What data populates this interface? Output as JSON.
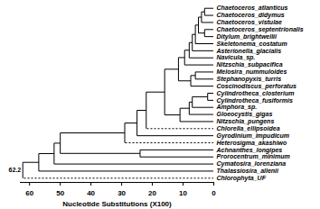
{
  "chart_data": {
    "type": "dendrogram",
    "x_label": "Nucleotide Substitutions (X100)",
    "xlim": [
      63,
      0
    ],
    "xticks": [
      60,
      50,
      40,
      30,
      20,
      10,
      0
    ],
    "tree": {
      "height": 62.2,
      "children": [
        {
          "height": 57,
          "children": [
            {
              "height": 52,
              "children": [
                {
                  "height": 50,
                  "children": [
                    {
                      "height": 29,
                      "children": [
                        {
                          "height": 25,
                          "children": [
                            {
                              "height": 22,
                              "children": [
                                {
                                  "height": 16,
                                  "children": [
                                    {
                                      "height": 11.5,
                                      "children": [
                                        {
                                          "height": 9.5,
                                          "children": [
                                            {
                                              "height": 8,
                                              "children": [
                                                {
                                                  "height": 7,
                                                  "children": [
                                                    {
                                                      "height": 6,
                                                      "children": [
                                                        {
                                                          "height": 5,
                                                          "children": [
                                                            {
                                                              "height": 4,
                                                              "children": [
                                                                {
                                                                  "height": 3,
                                                                  "children": [
                                                                    {
                                                                      "name": "Chaetoceros_atlanticus",
                                                                      "height": 0
                                                                    },
                                                                    {
                                                                      "name": "Chaetoceros_didymus",
                                                                      "height": 0
                                                                    }
                                                                  ]
                                                                },
                                                                {
                                                                  "name": "Chaetoceros_vistulae",
                                                                  "height": 0
                                                                }
                                                              ]
                                                            },
                                                            {
                                                              "height": 3,
                                                              "children": [
                                                                {
                                                                  "name": "Chaetoceros_septentrionalis",
                                                                  "height": 0
                                                                },
                                                                {
                                                                  "name": "Ditylum_brightwellii",
                                                                  "height": 0
                                                                }
                                                              ]
                                                            }
                                                          ]
                                                        },
                                                        {
                                                          "name": "Skeletonema_costatum",
                                                          "height": 0
                                                        }
                                                      ]
                                                    },
                                                    {
                                                      "name": "Asterionella_glacialis",
                                                      "height": 0
                                                    }
                                                  ]
                                                },
                                                {
                                                  "name": "Navicula_sp.",
                                                  "height": 0
                                                }
                                              ]
                                            },
                                            {
                                              "name": "Nitzschia_subpacifica",
                                              "height": 0
                                            }
                                          ]
                                        },
                                        {
                                          "height": 7.5,
                                          "children": [
                                            {
                                              "height": 6,
                                              "children": [
                                                {
                                                  "name": "Melosira_nummuloides",
                                                  "height": 0
                                                },
                                                {
                                                  "name": "Stephanopyxis_turris",
                                                  "height": 0
                                                }
                                              ]
                                            },
                                            {
                                              "name": "Coscinodiscus_perforatus",
                                              "height": 0
                                            }
                                          ]
                                        }
                                      ]
                                    },
                                    {
                                      "height": 11,
                                      "children": [
                                        {
                                          "height": 8,
                                          "children": [
                                            {
                                              "height": 7,
                                              "children": [
                                                {
                                                  "height": 2,
                                                  "children": [
                                                    {
                                                      "name": "Cylindrotheca_closterium",
                                                      "height": 0
                                                    },
                                                    {
                                                      "name": "Cylindrotheca_fusiformis",
                                                      "height": 0
                                                    }
                                                  ]
                                                },
                                                {
                                                  "name": "Amphora_sp.",
                                                  "height": 0
                                                }
                                              ]
                                            },
                                            {
                                              "name": "Gloeocystis_gigas",
                                              "height": 0
                                            }
                                          ]
                                        },
                                        {
                                          "name": "Nitzschia_pungens",
                                          "height": 0
                                        }
                                      ]
                                    }
                                  ]
                                },
                                {
                                  "name": "Chlorella_ellipsoidea",
                                  "height": 0,
                                  "line_style": "dashed"
                                }
                              ]
                            },
                            {
                              "name": "Gyrodinium_impudicum",
                              "height": 0
                            }
                          ]
                        },
                        {
                          "name": "Heterosigma_akashiwo",
                          "height": 0,
                          "line_style": "dashed"
                        }
                      ]
                    },
                    {
                      "height": 24,
                      "children": [
                        {
                          "name": "Achnanthes_longipes",
                          "height": 0
                        },
                        {
                          "name": "Prorocentrum_minimum",
                          "height": 0
                        }
                      ]
                    }
                  ]
                },
                {
                  "name": "Cymatosira_lorenziana",
                  "height": 0
                }
              ]
            },
            {
              "name": "Thalassiosira_allenii",
              "height": 0
            }
          ]
        },
        {
          "name": "Chlorophyta_UF",
          "height": 0,
          "line_style": "dashed"
        }
      ]
    }
  }
}
